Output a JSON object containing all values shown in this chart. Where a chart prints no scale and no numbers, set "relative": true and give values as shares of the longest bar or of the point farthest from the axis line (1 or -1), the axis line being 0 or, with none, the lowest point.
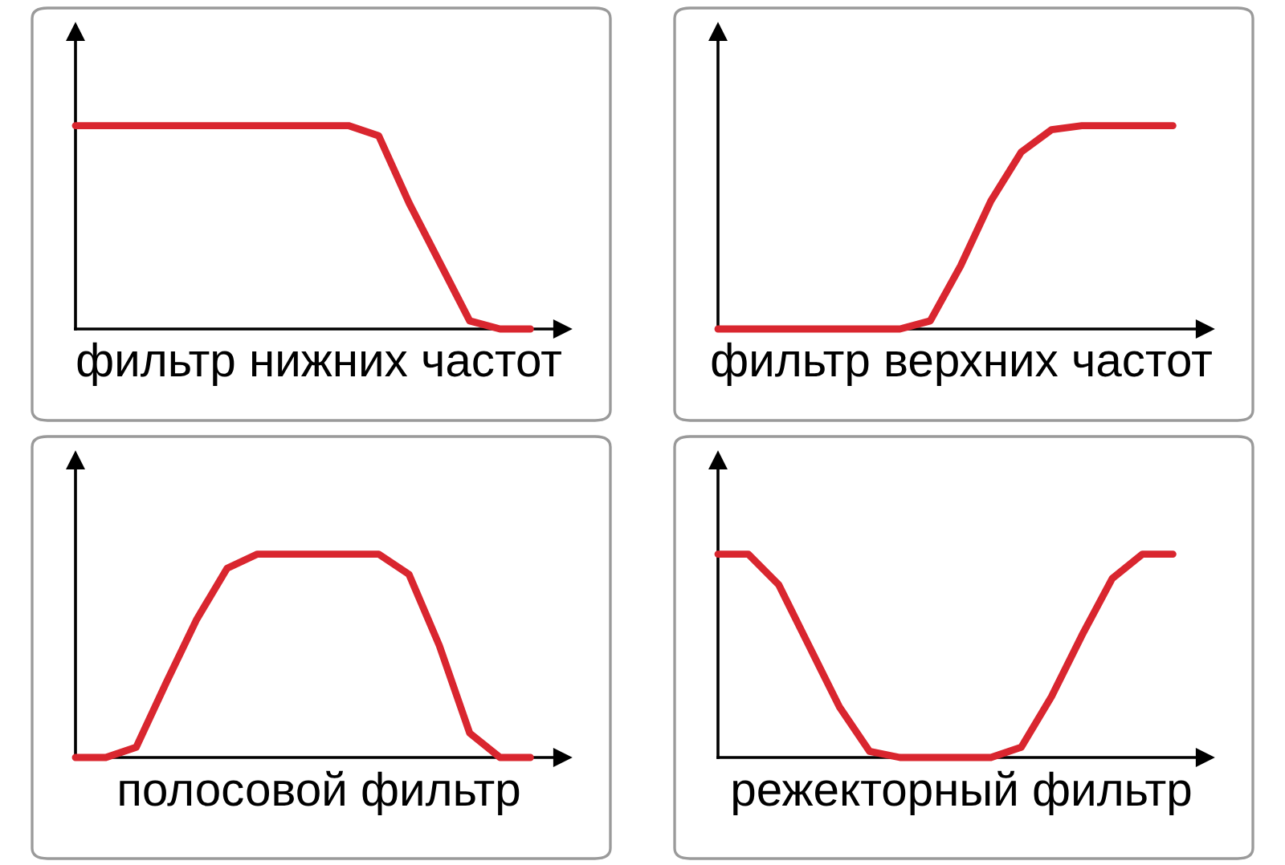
{
  "chart_data": [
    {
      "type": "line",
      "relative": true,
      "xlabel": "фильтр нижних частот",
      "categories": [
        null,
        null,
        null,
        null,
        null,
        null,
        null,
        null,
        null,
        null,
        null,
        null,
        null,
        null,
        null,
        null
      ],
      "series": [
        {
          "color": "#d9262f",
          "values": [
            1,
            1,
            1,
            1,
            1,
            1,
            1,
            1,
            1,
            1,
            0.95,
            0.62,
            0.33,
            0.04,
            0,
            0
          ]
        }
      ],
      "grid": false,
      "legend": false,
      "tick_labels": false
    },
    {
      "type": "line",
      "relative": true,
      "xlabel": "фильтр верхних частот",
      "categories": [
        null,
        null,
        null,
        null,
        null,
        null,
        null,
        null,
        null,
        null,
        null,
        null,
        null,
        null,
        null,
        null
      ],
      "series": [
        {
          "color": "#d9262f",
          "values": [
            0,
            0,
            0,
            0,
            0,
            0,
            0,
            0.04,
            0.31,
            0.63,
            0.87,
            0.98,
            1,
            1,
            1,
            1
          ]
        }
      ],
      "grid": false,
      "legend": false,
      "tick_labels": false
    },
    {
      "type": "line",
      "relative": true,
      "xlabel": "полосовой фильтр",
      "categories": [
        null,
        null,
        null,
        null,
        null,
        null,
        null,
        null,
        null,
        null,
        null,
        null,
        null,
        null,
        null,
        null
      ],
      "series": [
        {
          "color": "#d9262f",
          "values": [
            0,
            0,
            0.05,
            0.37,
            0.68,
            0.93,
            1,
            1,
            1,
            1,
            1,
            0.9,
            0.55,
            0.12,
            0,
            0
          ]
        }
      ],
      "grid": false,
      "legend": false,
      "tick_labels": false
    },
    {
      "type": "line",
      "relative": true,
      "xlabel": "режекторный фильтр",
      "categories": [
        null,
        null,
        null,
        null,
        null,
        null,
        null,
        null,
        null,
        null,
        null,
        null,
        null,
        null,
        null,
        null
      ],
      "series": [
        {
          "color": "#d9262f",
          "values": [
            1,
            1,
            0.85,
            0.55,
            0.25,
            0.03,
            0,
            0,
            0,
            0,
            0.05,
            0.3,
            0.6,
            0.88,
            1,
            1
          ]
        }
      ],
      "grid": false,
      "legend": false,
      "tick_labels": false
    }
  ]
}
